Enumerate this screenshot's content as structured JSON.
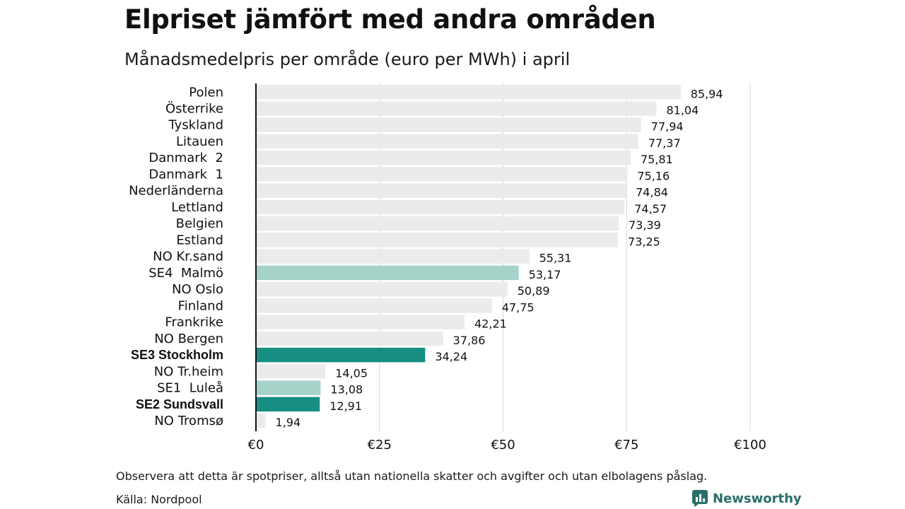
{
  "title": "Elpriset jämfört med andra områden",
  "subtitle": "Månadsmedelpris per område (euro per MWh) i april",
  "footnote": "Observera att detta är spotpriser, alltså utan nationella skatter och avgifter och utan elbolagens påslag.",
  "source": "Källa: Nordpool",
  "brand": {
    "name": "Newsworthy",
    "icon": "bar-chart-icon",
    "color": "#2a6f6a"
  },
  "colors": {
    "default": "#ebebeb",
    "highlight": "#168e82",
    "light_highlight": "#a5d2c9",
    "grid": "#d6d6d6",
    "axis": "#111111"
  },
  "chart_data": {
    "type": "bar",
    "orientation": "horizontal",
    "categories": [
      "Polen",
      "Österrike",
      "Tyskland",
      "Litauen",
      "Danmark  2",
      "Danmark  1",
      "Nederländerna",
      "Lettland",
      "Belgien",
      "Estland",
      "NO Kr.sand",
      "SE4  Malmö",
      "NO Oslo",
      "Finland",
      "Frankrike",
      "NO Bergen",
      "SE3 Stockholm",
      "NO Tr.heim",
      "SE1  Luleå",
      "SE2 Sundsvall",
      "NO Tromsø"
    ],
    "values": [
      85.94,
      81.04,
      77.94,
      77.37,
      75.81,
      75.16,
      74.84,
      74.57,
      73.39,
      73.25,
      55.31,
      53.17,
      50.89,
      47.75,
      42.21,
      37.86,
      34.24,
      14.05,
      13.08,
      12.91,
      1.94
    ],
    "value_labels": [
      "85,94",
      "81,04",
      "77,94",
      "77,37",
      "75,81",
      "75,16",
      "74,84",
      "74,57",
      "73,39",
      "73,25",
      "55,31",
      "53,17",
      "50,89",
      "47,75",
      "42,21",
      "37,86",
      "34,24",
      "14,05",
      "13,08",
      "12,91",
      "1,94"
    ],
    "bar_color": [
      "default",
      "default",
      "default",
      "default",
      "default",
      "default",
      "default",
      "default",
      "default",
      "default",
      "default",
      "light_highlight",
      "default",
      "default",
      "default",
      "default",
      "highlight",
      "default",
      "light_highlight",
      "highlight",
      "default"
    ],
    "bold_categories": [
      "SE3 Stockholm",
      "SE2 Sundsvall"
    ],
    "xticks": [
      0,
      25,
      50,
      75,
      100
    ],
    "xtick_labels": [
      "€0",
      "€25",
      "€50",
      "€75",
      "€100"
    ],
    "xlim": [
      0,
      100
    ],
    "grid": true,
    "legend": "none"
  }
}
